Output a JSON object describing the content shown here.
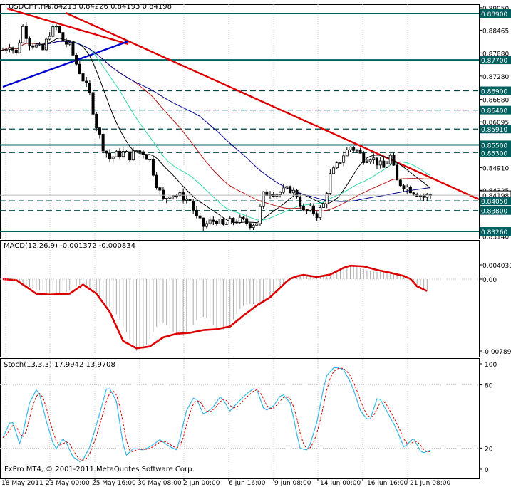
{
  "colors": {
    "background": "#ffffff",
    "frame": "#000000",
    "grid": "#c8c8c8",
    "price_line_h": "#006060",
    "price_line_dash": "#004848",
    "label_bg": "#006060",
    "label_text": "#ffffff",
    "candle": "#000000",
    "trend_red": "#dd0000",
    "trend_blue": "#0000cc",
    "ma_black": "#000000",
    "ma_aqua": "#2fd9a6",
    "ma_red": "#b41818",
    "ma_navy": "#000088",
    "macd_hist": "#a9a9a9",
    "macd_signal": "#dd0000",
    "stoch_main": "#35b7e5",
    "stoch_signal": "#dd0000"
  },
  "price_panel": {
    "header": {
      "symbol_tf": "USDCHF,H4",
      "ohlc": "0.84213 0.84226 0.84193 0.84198",
      "icon": "chart-corner-icon"
    },
    "current_price_label": "0.84198",
    "axis_ticks": [
      "0.89050",
      "0.88465",
      "0.87880",
      "0.87280",
      "0.86680",
      "0.86095",
      "0.84910",
      "0.84325",
      "0.83140"
    ],
    "horizontal_lines": [
      {
        "label": "0.88900",
        "value": 0.889,
        "style": "solid"
      },
      {
        "label": "0.87700",
        "value": 0.877,
        "style": "solid"
      },
      {
        "label": "0.86900",
        "value": 0.869,
        "style": "dashed"
      },
      {
        "label": "0.86400",
        "value": 0.864,
        "style": "dashed"
      },
      {
        "label": "0.85910",
        "value": 0.8591,
        "style": "dashed"
      },
      {
        "label": "0.85500",
        "value": 0.855,
        "style": "solid"
      },
      {
        "label": "0.85300",
        "value": 0.853,
        "style": "dashed"
      },
      {
        "label": "0.84050",
        "value": 0.8405,
        "style": "dashed"
      },
      {
        "label": "0.83800",
        "value": 0.838,
        "style": "dashed"
      },
      {
        "label": "0.83260",
        "value": 0.8326,
        "style": "solid"
      }
    ]
  },
  "macd_panel": {
    "header": "MACD(12,26,9) -0.001372 -0.000834",
    "axis_ticks": [
      "0.004030",
      "0.00",
      "-0.007895"
    ]
  },
  "stoch_panel": {
    "header": "Stoch(13,3,3) 17.9942 13.9708",
    "axis_ticks": [
      "100",
      "80",
      "20",
      "0"
    ]
  },
  "x_axis": {
    "labels": [
      "18 May 2011",
      "23 May 00:00",
      "25 May 16:00",
      "30 May 08:00",
      "2 Jun 00:00",
      "6 Jun 16:00",
      "9 Jun 08:00",
      "14 Jun 00:00",
      "16 Jun 16:00",
      "21 Jun 08:00"
    ]
  },
  "copyright": "FxPro MT4, © 2001-2011 MetaQuotes Software Corp.",
  "chart_data": {
    "type": "candlestick",
    "symbol": "USDCHF",
    "timeframe": "H4",
    "ylim": [
      0.8314,
      0.8905
    ],
    "close_path": [
      [
        0,
        0.8795
      ],
      [
        2,
        0.881
      ],
      [
        4,
        0.8785
      ],
      [
        6,
        0.8855
      ],
      [
        8,
        0.8815
      ],
      [
        10,
        0.8805
      ],
      [
        12,
        0.8795
      ],
      [
        14,
        0.884
      ],
      [
        16,
        0.8855
      ],
      [
        18,
        0.882
      ],
      [
        20,
        0.8805
      ],
      [
        22,
        0.876
      ],
      [
        24,
        0.872
      ],
      [
        26,
        0.868
      ],
      [
        28,
        0.86
      ],
      [
        30,
        0.8545
      ],
      [
        32,
        0.8515
      ],
      [
        34,
        0.8525
      ],
      [
        36,
        0.853
      ],
      [
        38,
        0.852
      ],
      [
        40,
        0.8535
      ],
      [
        42,
        0.853
      ],
      [
        44,
        0.851
      ],
      [
        46,
        0.845
      ],
      [
        48,
        0.8405
      ],
      [
        50,
        0.8425
      ],
      [
        52,
        0.842
      ],
      [
        54,
        0.8415
      ],
      [
        56,
        0.8405
      ],
      [
        58,
        0.836
      ],
      [
        60,
        0.834
      ],
      [
        62,
        0.835
      ],
      [
        64,
        0.8355
      ],
      [
        66,
        0.834
      ],
      [
        68,
        0.835
      ],
      [
        70,
        0.8355
      ],
      [
        72,
        0.8352
      ],
      [
        74,
        0.8345
      ],
      [
        76,
        0.835
      ],
      [
        78,
        0.842
      ],
      [
        80,
        0.843
      ],
      [
        82,
        0.8425
      ],
      [
        84,
        0.843
      ],
      [
        86,
        0.8435
      ],
      [
        88,
        0.842
      ],
      [
        90,
        0.8375
      ],
      [
        92,
        0.8382
      ],
      [
        94,
        0.837
      ],
      [
        96,
        0.8395
      ],
      [
        98,
        0.847
      ],
      [
        100,
        0.8495
      ],
      [
        102,
        0.8525
      ],
      [
        104,
        0.8545
      ],
      [
        106,
        0.8535
      ],
      [
        108,
        0.8515
      ],
      [
        110,
        0.852
      ],
      [
        112,
        0.8505
      ],
      [
        114,
        0.849
      ],
      [
        116,
        0.852
      ],
      [
        118,
        0.8455
      ],
      [
        120,
        0.8445
      ],
      [
        122,
        0.8435
      ],
      [
        124,
        0.8425
      ],
      [
        126,
        0.8415
      ],
      [
        128,
        0.842
      ]
    ],
    "indicators": {
      "macd_line": [
        [
          0,
          0
        ],
        [
          4,
          -0.0001
        ],
        [
          10,
          -0.0016
        ],
        [
          14,
          -0.0017
        ],
        [
          20,
          -0.0016
        ],
        [
          24,
          -0.0006
        ],
        [
          28,
          -0.0016
        ],
        [
          32,
          -0.0036
        ],
        [
          36,
          -0.0068
        ],
        [
          40,
          -0.0076
        ],
        [
          44,
          -0.0074
        ],
        [
          48,
          -0.0064
        ],
        [
          52,
          -0.006
        ],
        [
          56,
          -0.0059
        ],
        [
          60,
          -0.0056
        ],
        [
          64,
          -0.0055
        ],
        [
          68,
          -0.0052
        ],
        [
          72,
          -0.004
        ],
        [
          76,
          -0.0029
        ],
        [
          80,
          -0.002
        ],
        [
          84,
          -0.0006
        ],
        [
          88,
          0.0008
        ],
        [
          90,
          0.0012
        ],
        [
          94,
          0.0006
        ],
        [
          98,
          0.0013
        ],
        [
          102,
          0.0032
        ],
        [
          104,
          0.0038
        ],
        [
          108,
          0.0036
        ],
        [
          112,
          0.0026
        ],
        [
          116,
          0.0018
        ],
        [
          120,
          0.0009
        ],
        [
          124,
          -0.0008
        ],
        [
          127,
          -0.0013
        ]
      ],
      "stoch_main": [
        [
          0,
          30
        ],
        [
          2,
          48
        ],
        [
          4,
          22
        ],
        [
          6,
          62
        ],
        [
          8,
          78
        ],
        [
          10,
          45
        ],
        [
          12,
          18
        ],
        [
          14,
          30
        ],
        [
          16,
          12
        ],
        [
          18,
          6
        ],
        [
          20,
          22
        ],
        [
          22,
          50
        ],
        [
          24,
          80
        ],
        [
          26,
          65
        ],
        [
          28,
          12
        ],
        [
          30,
          20
        ],
        [
          32,
          18
        ],
        [
          34,
          22
        ],
        [
          36,
          28
        ],
        [
          38,
          22
        ],
        [
          40,
          18
        ],
        [
          42,
          55
        ],
        [
          44,
          70
        ],
        [
          46,
          52
        ],
        [
          48,
          58
        ],
        [
          50,
          70
        ],
        [
          52,
          55
        ],
        [
          54,
          64
        ],
        [
          56,
          72
        ],
        [
          58,
          78
        ],
        [
          60,
          55
        ],
        [
          62,
          60
        ],
        [
          64,
          72
        ],
        [
          66,
          62
        ],
        [
          68,
          20
        ],
        [
          70,
          18
        ],
        [
          72,
          45
        ],
        [
          74,
          88
        ],
        [
          76,
          97
        ],
        [
          78,
          95
        ],
        [
          80,
          80
        ],
        [
          82,
          55
        ],
        [
          84,
          45
        ],
        [
          86,
          70
        ],
        [
          88,
          55
        ],
        [
          90,
          40
        ],
        [
          92,
          20
        ],
        [
          94,
          30
        ],
        [
          96,
          15
        ],
        [
          98,
          18
        ]
      ]
    }
  }
}
